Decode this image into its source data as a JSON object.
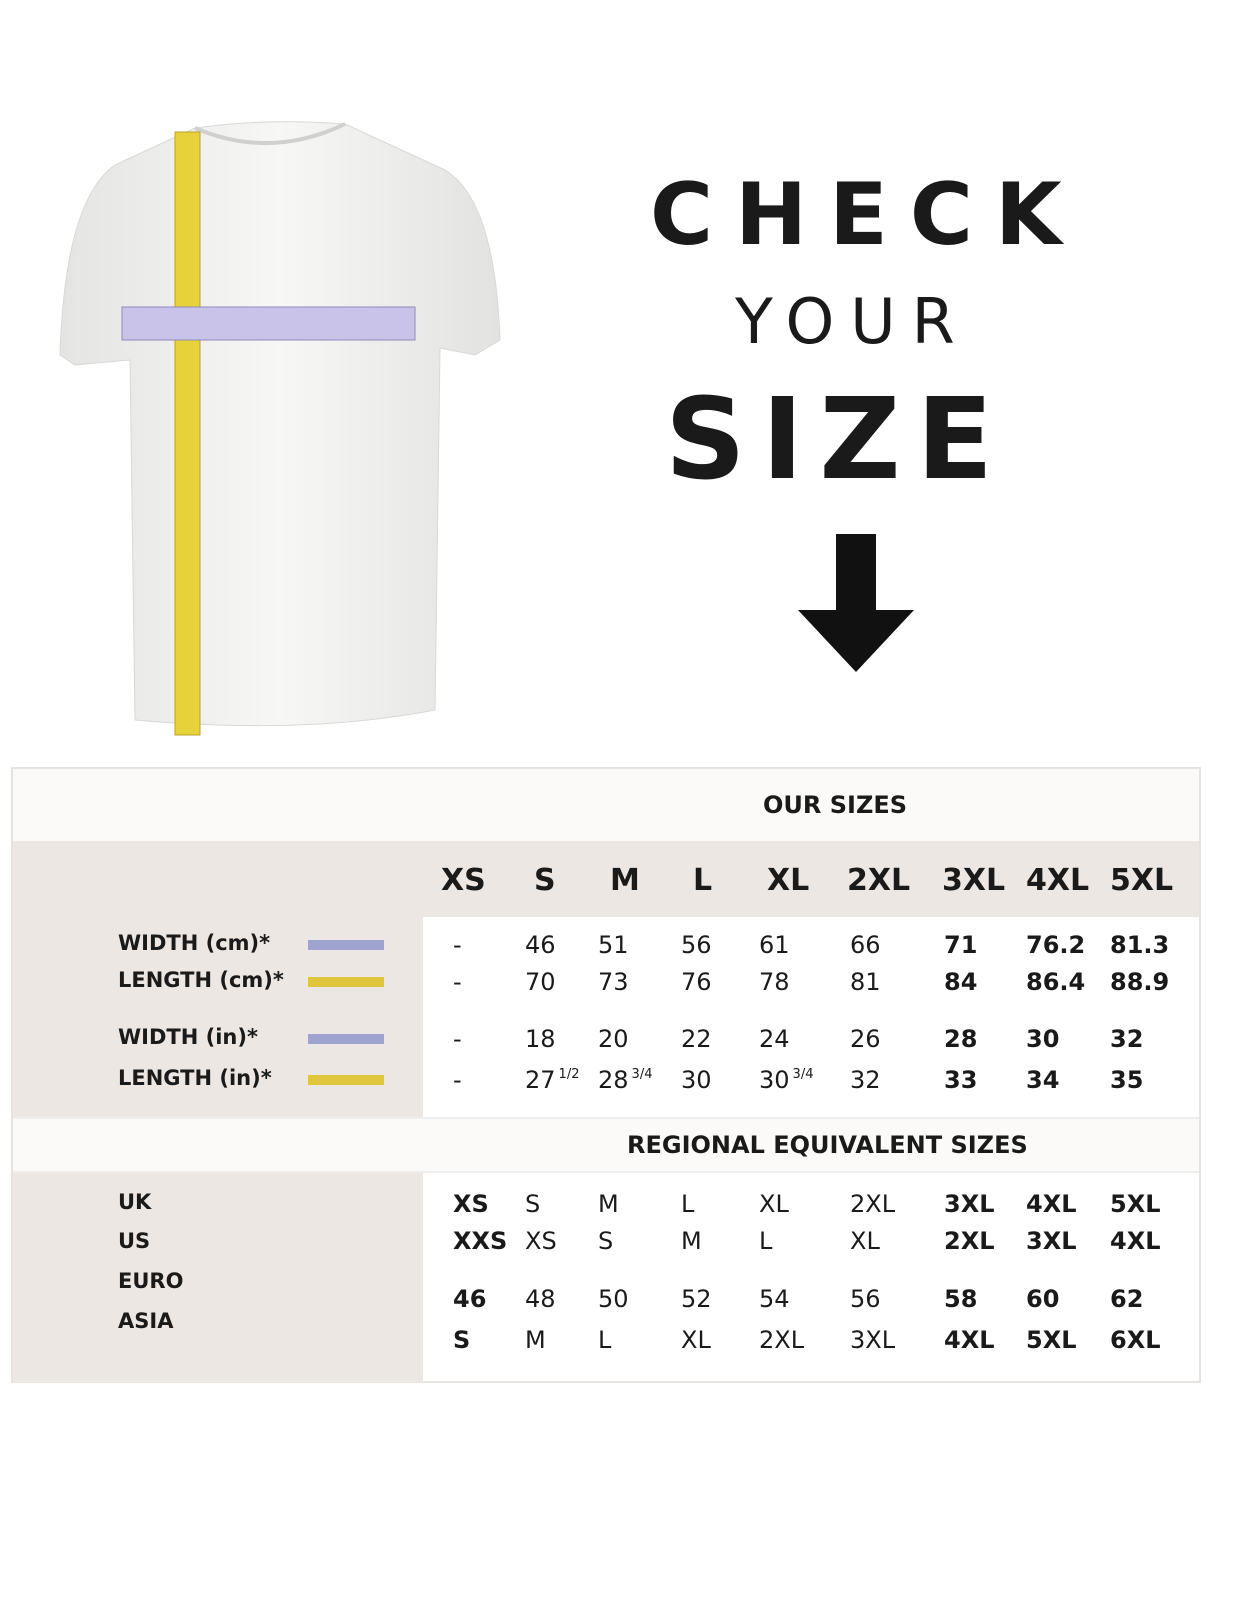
{
  "heading": {
    "line1": "CHECK",
    "line2": "YOUR",
    "line3": "SIZE"
  },
  "illustration": {
    "subject": "t-shirt with measuring tapes",
    "icon": "arrow-down-icon",
    "width_tape_color": "#b9b4e0",
    "length_tape_color": "#e8d23a"
  },
  "our_sizes": {
    "title": "OUR SIZES",
    "sizes": [
      "XS",
      "S",
      "M",
      "L",
      "XL",
      "2XL",
      "3XL",
      "4XL",
      "5XL"
    ],
    "rows": [
      {
        "label": "WIDTH (cm)*",
        "color": "#9fa3cf",
        "values": [
          "-",
          "46",
          "51",
          "56",
          "61",
          "66",
          "71",
          "76.2",
          "81.3"
        ]
      },
      {
        "label": "LENGTH (cm)*",
        "color": "#e0c63c",
        "values": [
          "-",
          "70",
          "73",
          "76",
          "78",
          "81",
          "84",
          "86.4",
          "88.9"
        ]
      },
      {
        "label": "WIDTH (in)*",
        "color": "#9fa3cf",
        "values": [
          "-",
          "18",
          "20",
          "22",
          "24",
          "26",
          "28",
          "30",
          "32"
        ]
      },
      {
        "label": "LENGTH (in)*",
        "color": "#e0c63c",
        "values": [
          "-",
          "27",
          "28",
          "30",
          "30",
          "32",
          "33",
          "34",
          "35"
        ],
        "fractions": [
          "",
          "1/2",
          "3/4",
          "",
          "3/4",
          "",
          "",
          "",
          ""
        ]
      }
    ]
  },
  "regional": {
    "title": "REGIONAL EQUIVALENT SIZES",
    "labels": [
      "UK",
      "US",
      "EURO",
      "ASIA"
    ],
    "rows": [
      [
        "XS",
        "S",
        "M",
        "L",
        "XL",
        "2XL",
        "3XL",
        "4XL",
        "5XL"
      ],
      [
        "XXS",
        "XS",
        "S",
        "M",
        "L",
        "XL",
        "2XL",
        "3XL",
        "4XL"
      ],
      [
        "46",
        "48",
        "50",
        "52",
        "54",
        "56",
        "58",
        "60",
        "62"
      ],
      [
        "S",
        "M",
        "L",
        "XL",
        "2XL",
        "3XL",
        "4XL",
        "5XL",
        "6XL"
      ]
    ]
  }
}
